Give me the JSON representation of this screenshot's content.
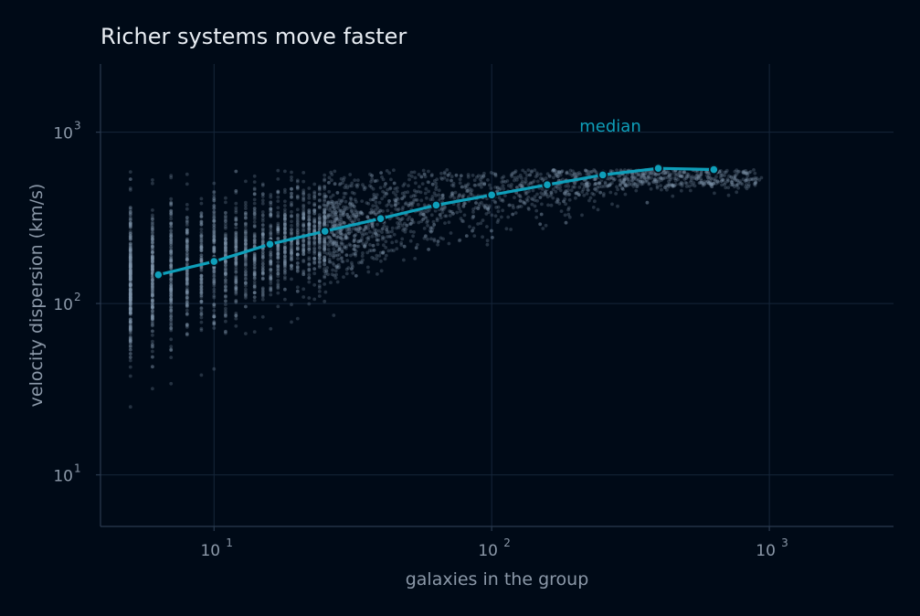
{
  "chart_data": {
    "type": "scatter",
    "title": "Richer systems move faster",
    "xlabel": "galaxies in the group",
    "ylabel": "velocity dispersion (km/s)",
    "xscale": "log",
    "yscale": "log",
    "xlim": [
      3.9,
      2800
    ],
    "ylim": [
      5,
      2500
    ],
    "grid": true,
    "x_ticks": [
      {
        "value": 10,
        "base": "10",
        "exp": "1"
      },
      {
        "value": 100,
        "base": "10",
        "exp": "2"
      },
      {
        "value": 1000,
        "base": "10",
        "exp": "3"
      }
    ],
    "y_ticks": [
      {
        "value": 10,
        "base": "10",
        "exp": "1"
      },
      {
        "value": 100,
        "base": "10",
        "exp": "2"
      },
      {
        "value": 1000,
        "base": "10",
        "exp": "3"
      }
    ],
    "series": [
      {
        "name": "median",
        "type": "line",
        "color": "#0e9fba",
        "x": [
          6.3,
          10,
          15.9,
          25.1,
          39.8,
          63.1,
          100,
          158.5,
          251.2,
          398.1,
          631
        ],
        "y": [
          147,
          176,
          222,
          264,
          313,
          375,
          430,
          493,
          563,
          615,
          605
        ]
      }
    ],
    "scatter_color": "#8396ad",
    "scatter_description_count": 4000
  }
}
